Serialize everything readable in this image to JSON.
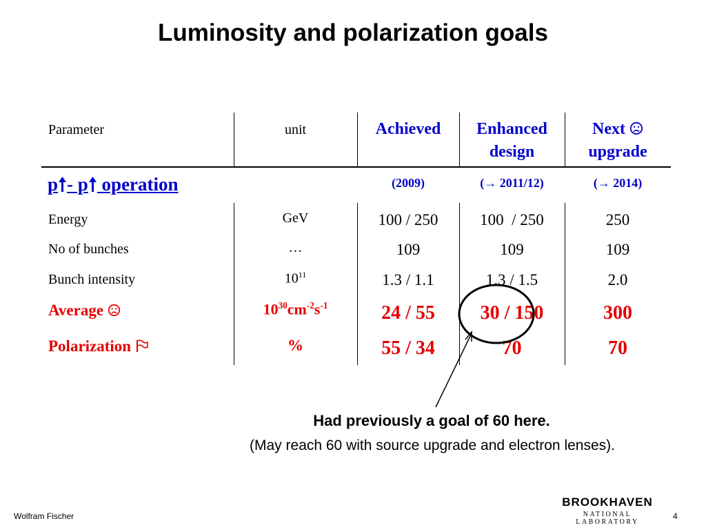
{
  "title": "Luminosity and polarization goals",
  "table": {
    "headers": {
      "parameter": "Parameter",
      "unit": "unit",
      "achieved": "Achieved",
      "enhanced_line1": "Enhanced",
      "enhanced_line2": "design",
      "next_line1": "Next",
      "next_line2": "upgrade"
    },
    "section": {
      "p1": "p",
      "dash": "- p",
      "operation": " operation",
      "year_achieved": "(2009)",
      "year_enhanced": "(→ 2011/12)",
      "year_next": "(→ 2014)"
    },
    "rows": [
      {
        "parameter": "Energy",
        "unit": "GeV",
        "achieved": "100 / 250",
        "enhanced": "100  / 250",
        "next": "250"
      },
      {
        "parameter": "No of bunches",
        "unit": "…",
        "achieved": "109",
        "enhanced": "109",
        "next": "109"
      },
      {
        "parameter": "Bunch intensity",
        "unit_base": "10",
        "unit_exp": "11",
        "achieved": "1.3 / 1.1",
        "enhanced": "1.3 / 1.5",
        "next": "2.0"
      },
      {
        "parameter": "Average",
        "unit_a": "10",
        "unit_a_exp": "30",
        "unit_b": "cm",
        "unit_b_exp": "-2",
        "unit_c": "s",
        "unit_c_exp": "-1",
        "achieved": "24 / 55",
        "enhanced": "30 / 150",
        "next": "300"
      },
      {
        "parameter": "Polarization",
        "unit": "%",
        "achieved": "55 / 34",
        "enhanced": "70",
        "next": "70"
      }
    ],
    "icons": {
      "next_header": "frown-face-icon",
      "average": "frown-face-icon",
      "polarization": "flag-icon",
      "arrow": "up-arrow-icon"
    }
  },
  "note": {
    "line1": "Had previously a goal of 60 here.",
    "line2": "(May reach 60 with source upgrade and electron lenses)."
  },
  "footer": {
    "author": "Wolfram Fischer",
    "page": "4",
    "logo_main": "BROOKHAVEN",
    "logo_sub": "NATIONAL LABORATORY"
  },
  "colors": {
    "accent_blue": "#0000cc",
    "accent_red": "#e60000"
  }
}
